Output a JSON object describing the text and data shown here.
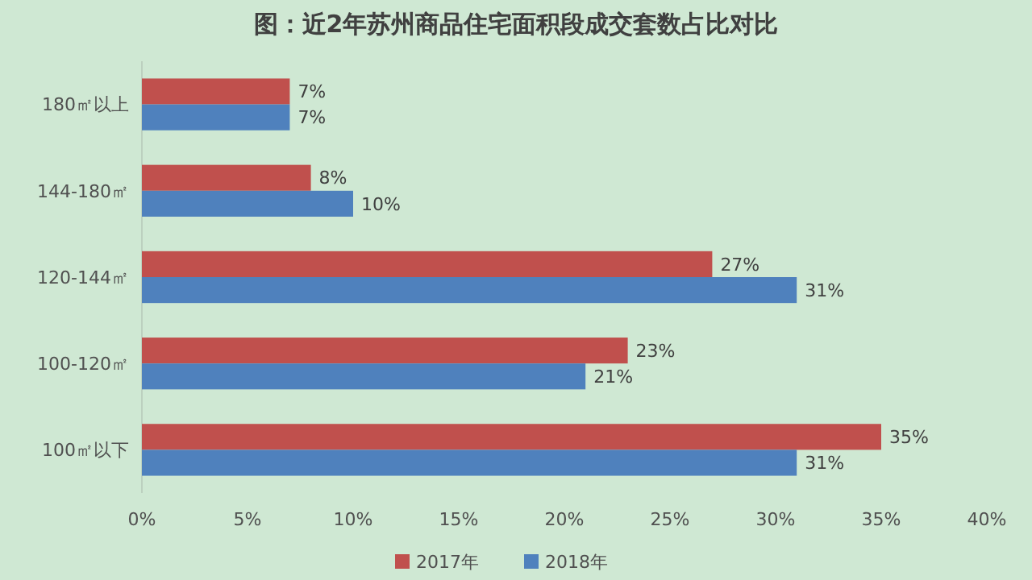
{
  "chart_data": {
    "type": "bar",
    "orientation": "horizontal",
    "title": "图：近2年苏州商品住宅面积段成交套数占比对比",
    "categories": [
      "180㎡以上",
      "144-180㎡",
      "120-144㎡",
      "100-120㎡",
      "100㎡以下"
    ],
    "series": [
      {
        "name": "2017年",
        "color": "#c0504d",
        "values": [
          7,
          8,
          27,
          23,
          35
        ],
        "value_labels": [
          "7%",
          "8%",
          "27%",
          "23%",
          "35%"
        ]
      },
      {
        "name": "2018年",
        "color": "#4f81bd",
        "values": [
          7,
          10,
          31,
          21,
          31
        ],
        "value_labels": [
          "7%",
          "10%",
          "31%",
          "21%",
          "31%"
        ]
      }
    ],
    "xlim": [
      0,
      40
    ],
    "xticks": [
      {
        "value": 0,
        "label": "0%"
      },
      {
        "value": 5,
        "label": "5%"
      },
      {
        "value": 10,
        "label": "10%"
      },
      {
        "value": 15,
        "label": "15%"
      },
      {
        "value": 20,
        "label": "20%"
      },
      {
        "value": 25,
        "label": "25%"
      },
      {
        "value": 30,
        "label": "30%"
      },
      {
        "value": 35,
        "label": "35%"
      },
      {
        "value": 40,
        "label": "40%"
      }
    ],
    "legend": "bottom"
  }
}
